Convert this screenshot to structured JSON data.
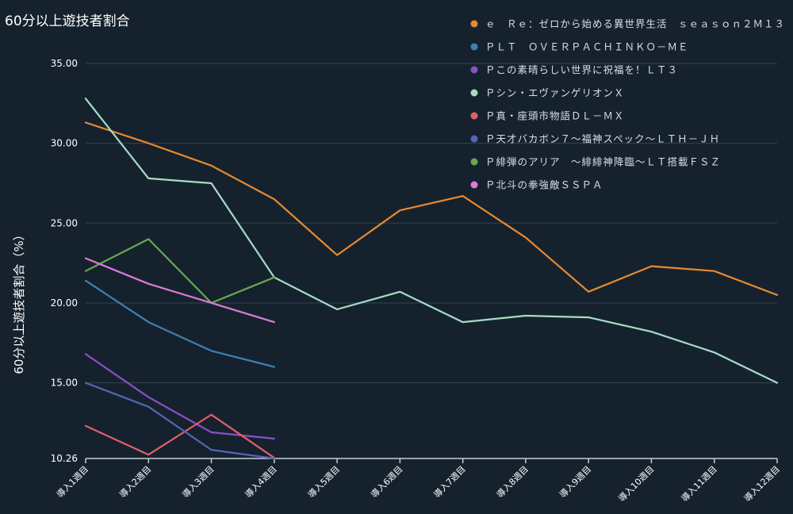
{
  "chart_data": {
    "type": "line",
    "title": "60分以上遊技者割合",
    "ylabel": "60分以上遊技者割合（%）",
    "xlabel": "",
    "ylim": [
      10.26,
      35.0
    ],
    "yticks": [
      "35.00",
      "30.00",
      "25.00",
      "20.00",
      "15.00",
      "10.26"
    ],
    "ytick_values": [
      35.0,
      30.0,
      25.0,
      20.0,
      15.0,
      10.26
    ],
    "grid": true,
    "legend_position": "top-right",
    "categories": [
      "導入1週目",
      "導入2週目",
      "導入3週目",
      "導入4週目",
      "導入5週目",
      "導入6週目",
      "導入7週目",
      "導入8週目",
      "導入9週目",
      "導入10週目",
      "導入11週目",
      "導入12週目"
    ],
    "series": [
      {
        "name": "ｅ　Ｒｅ：ゼロから始める異世界生活　ｓｅａｓｏｎ２Ｍ１３",
        "color": "#e8892f",
        "values": [
          31.3,
          30.0,
          28.6,
          26.5,
          23.0,
          25.8,
          26.7,
          24.1,
          20.7,
          22.3,
          22.0,
          20.5
        ]
      },
      {
        "name": "ＰＬＴ　ＯＶＥＲＰＡＣＨＩＮＫＯ－ＭＥ",
        "color": "#3d82b0",
        "values": [
          21.4,
          18.8,
          17.0,
          16.0,
          null,
          null,
          null,
          null,
          null,
          null,
          null,
          null
        ]
      },
      {
        "name": "Ｐこの素晴らしい世界に祝福を！ＬＴ３",
        "color": "#8b4fc4",
        "values": [
          16.8,
          14.1,
          11.9,
          11.5,
          null,
          null,
          null,
          null,
          null,
          null,
          null,
          null
        ]
      },
      {
        "name": "Ｐシン・エヴァンゲリオンＸ",
        "color": "#a8dcc4",
        "values": [
          32.8,
          27.8,
          27.5,
          21.6,
          19.6,
          20.7,
          18.8,
          19.2,
          19.1,
          18.2,
          16.9,
          15.0
        ]
      },
      {
        "name": "Ｐ真・座頭市物語ＤＬ－ＭＸ",
        "color": "#e0606a",
        "values": [
          12.3,
          10.5,
          13.0,
          10.3,
          null,
          null,
          null,
          null,
          null,
          null,
          null,
          null
        ]
      },
      {
        "name": "Ｐ天才バカボン７～福神スペック～ＬＴＨ－ＪＨ",
        "color": "#5266b8",
        "values": [
          15.0,
          13.5,
          10.8,
          10.26,
          null,
          null,
          null,
          null,
          null,
          null,
          null,
          null
        ]
      },
      {
        "name": "Ｐ緋弾のアリア　～緋緋神降臨～ＬＴ搭載ＦＳＺ",
        "color": "#6aa84f",
        "values": [
          22.0,
          24.0,
          20.0,
          21.6,
          null,
          null,
          null,
          null,
          null,
          null,
          null,
          null
        ]
      },
      {
        "name": "Ｐ北斗の拳強敵ＳＳＰＡ",
        "color": "#e07ad6",
        "values": [
          22.8,
          21.2,
          20.0,
          18.8,
          null,
          null,
          null,
          null,
          null,
          null,
          null,
          null
        ]
      }
    ]
  }
}
